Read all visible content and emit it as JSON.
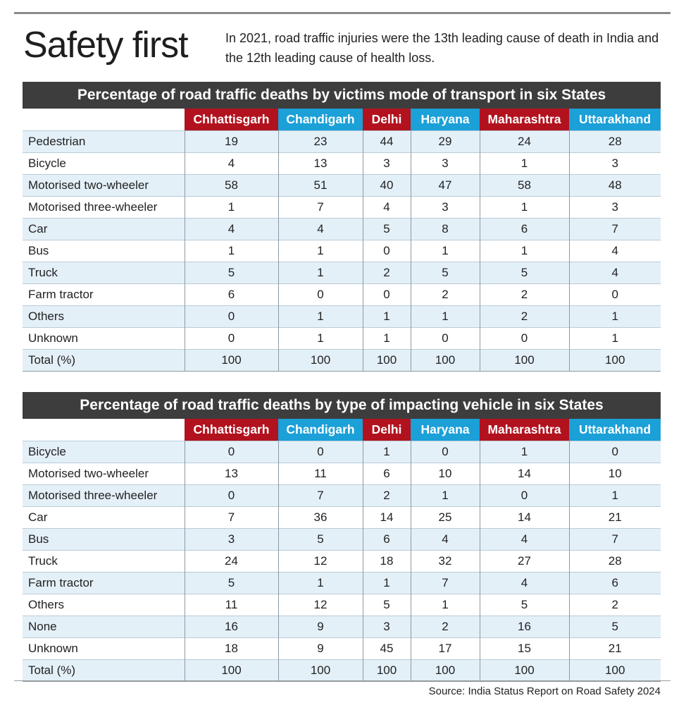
{
  "headline": "Safety first",
  "intro": "In 2021, road traffic injuries were the 13th leading cause of death in India and the 12th leading cause of health loss.",
  "source": "Source: India Status Report on Road Safety 2024",
  "colors": {
    "red": "#b2121e",
    "blue": "#1ba0d8",
    "title_bar": "#3d3d3d",
    "row_tint": "#e4f0f8"
  },
  "chart_data": [
    {
      "type": "table",
      "title": "Percentage of road traffic deaths by victims mode of transport in six States",
      "columns": [
        "Chhattisgarh",
        "Chandigarh",
        "Delhi",
        "Haryana",
        "Maharashtra",
        "Uttarakhand"
      ],
      "rows": [
        {
          "label": "Pedestrian",
          "values": [
            19,
            23,
            44,
            29,
            24,
            28
          ]
        },
        {
          "label": "Bicycle",
          "values": [
            4,
            13,
            3,
            3,
            1,
            3
          ]
        },
        {
          "label": "Motorised two-wheeler",
          "values": [
            58,
            51,
            40,
            47,
            58,
            48
          ]
        },
        {
          "label": "Motorised three-wheeler",
          "values": [
            1,
            7,
            4,
            3,
            1,
            3
          ]
        },
        {
          "label": "Car",
          "values": [
            4,
            4,
            5,
            8,
            6,
            7
          ]
        },
        {
          "label": "Bus",
          "values": [
            1,
            1,
            0,
            1,
            1,
            4
          ]
        },
        {
          "label": "Truck",
          "values": [
            5,
            1,
            2,
            5,
            5,
            4
          ]
        },
        {
          "label": "Farm tractor",
          "values": [
            6,
            0,
            0,
            2,
            2,
            0
          ]
        },
        {
          "label": "Others",
          "values": [
            0,
            1,
            1,
            1,
            2,
            1
          ]
        },
        {
          "label": "Unknown",
          "values": [
            0,
            1,
            1,
            0,
            0,
            1
          ]
        },
        {
          "label": "Total (%)",
          "values": [
            100,
            100,
            100,
            100,
            100,
            100
          ]
        }
      ]
    },
    {
      "type": "table",
      "title": "Percentage of road traffic deaths by type of impacting vehicle in six States",
      "columns": [
        "Chhattisgarh",
        "Chandigarh",
        "Delhi",
        "Haryana",
        "Maharashtra",
        "Uttarakhand"
      ],
      "rows": [
        {
          "label": "Bicycle",
          "values": [
            0,
            0,
            1,
            0,
            1,
            0
          ]
        },
        {
          "label": "Motorised two-wheeler",
          "values": [
            13,
            11,
            6,
            10,
            14,
            10
          ]
        },
        {
          "label": "Motorised three-wheeler",
          "values": [
            0,
            7,
            2,
            1,
            0,
            1
          ]
        },
        {
          "label": "Car",
          "values": [
            7,
            36,
            14,
            25,
            14,
            21
          ]
        },
        {
          "label": "Bus",
          "values": [
            3,
            5,
            6,
            4,
            4,
            7
          ]
        },
        {
          "label": "Truck",
          "values": [
            24,
            12,
            18,
            32,
            27,
            28
          ]
        },
        {
          "label": "Farm tractor",
          "values": [
            5,
            1,
            1,
            7,
            4,
            6
          ]
        },
        {
          "label": "Others",
          "values": [
            11,
            12,
            5,
            1,
            5,
            2
          ]
        },
        {
          "label": "None",
          "values": [
            16,
            9,
            3,
            2,
            16,
            5
          ]
        },
        {
          "label": "Unknown",
          "values": [
            18,
            9,
            45,
            17,
            15,
            21
          ]
        },
        {
          "label": "Total (%)",
          "values": [
            100,
            100,
            100,
            100,
            100,
            100
          ]
        }
      ]
    }
  ]
}
